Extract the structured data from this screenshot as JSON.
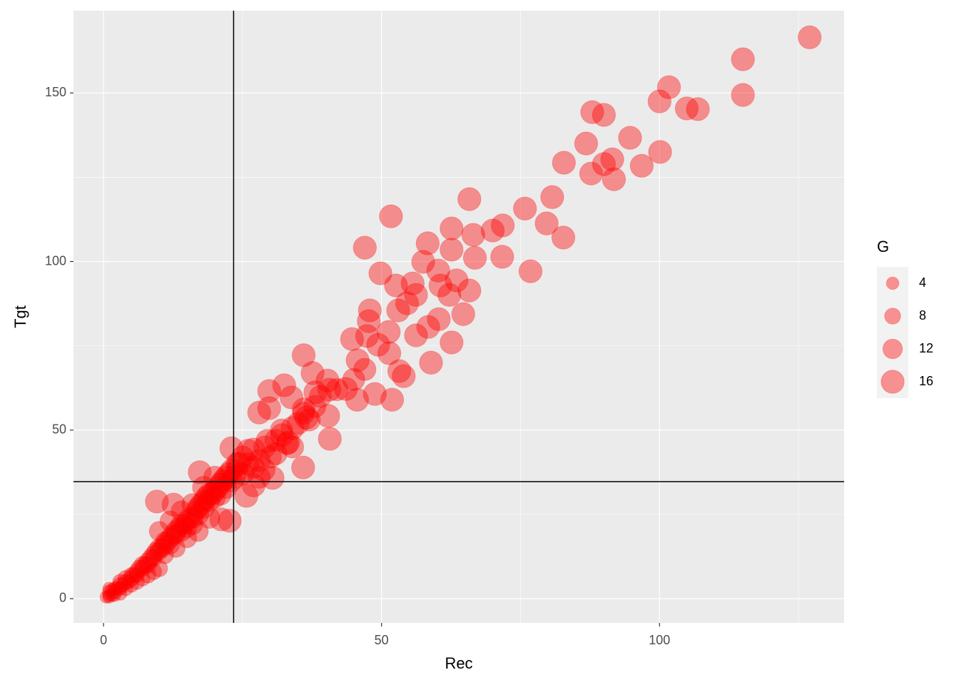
{
  "chart_data": {
    "type": "scatter",
    "x_label": "Rec",
    "y_label": "Tgt",
    "legend_title": "G",
    "xlim": [
      -5.4,
      133.2
    ],
    "ylim": [
      -7.2,
      174.4
    ],
    "xticks": [
      0,
      50,
      100
    ],
    "yticks": [
      0,
      50,
      100,
      150
    ],
    "xminor": [
      25,
      75,
      125
    ],
    "yminor": [
      25,
      75,
      125
    ],
    "grid": true,
    "alpha": 0.4,
    "vlines": [
      23.4
    ],
    "hlines": [
      34.7
    ],
    "size_legend": [
      4,
      8,
      12,
      16
    ],
    "series": [
      {
        "color": "#ff0000",
        "x": [
          127,
          115,
          115,
          101.7,
          100,
          104.9,
          106.9,
          100.1,
          94.7,
          96.8,
          91.5,
          91.8,
          90,
          87.7,
          87.9,
          90,
          86.8,
          82.8,
          80.7,
          79.7,
          82.7,
          75.8,
          71.8,
          70,
          71.7,
          76.8,
          65.8,
          66.5,
          66.8,
          62.6,
          62.6,
          58.3,
          57.5,
          60.2,
          60.6,
          65.8,
          63.5,
          62.2,
          64.7,
          62.6,
          60.3,
          58.4,
          58.9,
          55.6,
          56.2,
          54.6,
          56.2,
          53,
          51.7,
          47,
          49.8,
          52.6,
          47.9,
          47.7,
          44.7,
          47.4,
          51.3,
          49.4,
          45.7,
          51.4,
          53.2,
          54,
          51.9,
          48.8,
          45.6,
          43.6,
          40.4,
          40.7,
          36,
          37.6,
          40.3,
          40.6,
          38.1,
          32.5,
          33.8,
          29.8,
          28,
          29.8,
          36,
          36.5,
          35.9,
          33.2,
          32.1,
          34,
          29.5,
          27,
          23,
          24.4,
          28.8,
          27,
          30.4,
          25.7,
          17.3,
          9.6,
          12.6,
          21.2,
          22.7,
          1,
          1,
          1.5,
          2,
          2,
          2.5,
          3,
          3,
          3.5,
          4,
          4,
          4.5,
          5,
          5,
          5.5,
          6,
          6,
          6.5,
          7,
          7,
          7.5,
          8,
          8,
          8.5,
          9,
          9,
          9.5,
          10,
          10,
          10.5,
          11,
          11,
          11.5,
          12,
          12,
          12.5,
          13,
          13,
          13.5,
          14,
          14,
          14.5,
          15,
          15,
          15.5,
          16,
          16,
          16.5,
          17,
          17,
          17.5,
          18,
          18,
          18.5,
          19,
          19,
          19.5,
          20,
          20,
          20.5,
          21,
          21,
          21.5,
          22,
          22,
          22.5,
          23,
          23,
          23.5,
          24,
          24,
          25,
          25,
          26,
          26,
          27,
          28,
          28,
          29,
          30,
          31,
          31,
          32,
          33,
          34,
          35,
          36,
          37,
          38,
          39,
          42,
          45,
          47,
          3,
          5,
          7,
          9,
          11,
          13,
          15,
          17,
          19,
          12,
          14,
          16,
          18,
          20,
          10,
          1,
          2,
          0.5,
          1,
          1.5,
          3,
          4,
          6,
          8,
          10
        ],
        "y": [
          166.5,
          160,
          149.4,
          151.7,
          147.5,
          145.4,
          145.2,
          132.5,
          136.7,
          128.4,
          130.3,
          124.4,
          128.9,
          126.1,
          144.3,
          143.5,
          135,
          129.3,
          119.1,
          111.3,
          107.1,
          115.7,
          110.7,
          109.2,
          101.4,
          97.1,
          118.5,
          107.9,
          101.1,
          109.8,
          103.5,
          105.4,
          99.9,
          97.3,
          92.9,
          91.4,
          94.4,
          90.1,
          84.4,
          76,
          82.9,
          80.6,
          70,
          93.5,
          90.1,
          87.6,
          78.1,
          85.5,
          113.4,
          104.1,
          96.5,
          92.9,
          85.5,
          82.3,
          77,
          77.9,
          79.1,
          75.3,
          70.7,
          72.8,
          67.5,
          66,
          59,
          60.7,
          59,
          62.2,
          54.2,
          47.4,
          72.2,
          66.9,
          64.7,
          62,
          61.2,
          63.3,
          59.7,
          61.6,
          55.2,
          56.5,
          56.1,
          53.7,
          38.9,
          46.3,
          48.5,
          50.6,
          46.8,
          44.2,
          44.6,
          40,
          38.3,
          33.6,
          35.8,
          30.5,
          37.5,
          28.8,
          27.9,
          23.5,
          23.1,
          1,
          2,
          1,
          2,
          3,
          3,
          3,
          4,
          4,
          5,
          6,
          5,
          6,
          7,
          7,
          8,
          7,
          9,
          9,
          10,
          10,
          11,
          10,
          12,
          12,
          13,
          14,
          14,
          15,
          15,
          16,
          17,
          17,
          18,
          16,
          19,
          19,
          20,
          21,
          20,
          22,
          22,
          23,
          21,
          24,
          24,
          22,
          26,
          25,
          27,
          28,
          27,
          29,
          30,
          29,
          31,
          31,
          32,
          30,
          33,
          34,
          31,
          35,
          36,
          33,
          37,
          38,
          35,
          36,
          38,
          40,
          37,
          42,
          40,
          44,
          39,
          41,
          36,
          45,
          42,
          47,
          43,
          50,
          46,
          45,
          52,
          55,
          53,
          57,
          60,
          62,
          65,
          68,
          5,
          4,
          6,
          8,
          13,
          15,
          18,
          20,
          24,
          23,
          26,
          28,
          33,
          36,
          20,
          3,
          1,
          0.5,
          0.5,
          2.5,
          1.5,
          3,
          5,
          7,
          9
        ],
        "size": [
          16,
          16,
          16,
          16,
          16,
          16,
          16,
          16,
          16,
          16,
          16,
          16,
          16,
          16,
          16,
          16,
          16,
          16,
          16,
          16,
          16,
          16,
          16,
          16,
          16,
          16,
          16,
          16,
          16,
          16,
          16,
          16,
          16,
          16,
          16,
          16,
          16,
          16,
          16,
          16,
          16,
          16,
          16,
          16,
          16,
          16,
          16,
          16,
          16,
          16,
          16,
          16,
          16,
          16,
          16,
          16,
          16,
          16,
          16,
          16,
          16,
          16,
          16,
          16,
          16,
          16,
          16,
          16,
          16,
          16,
          16,
          16,
          16,
          16,
          16,
          16,
          16,
          16,
          16,
          16,
          16,
          16,
          16,
          16,
          16,
          16,
          16,
          16,
          16,
          16,
          16,
          16,
          16,
          16,
          16,
          16,
          16,
          4,
          5,
          4,
          6,
          5,
          6,
          5,
          7,
          6,
          7,
          8,
          6,
          8,
          7,
          8,
          8,
          7,
          9,
          8,
          9,
          9,
          10,
          9,
          10,
          9,
          10,
          11,
          10,
          11,
          11,
          12,
          11,
          12,
          12,
          11,
          12,
          12,
          13,
          12,
          13,
          13,
          12,
          13,
          12,
          13,
          14,
          13,
          13,
          14,
          14,
          14,
          14,
          14,
          15,
          14,
          15,
          15,
          15,
          14,
          15,
          15,
          15,
          15,
          15,
          15,
          15,
          15,
          15,
          15,
          15,
          15,
          15,
          15,
          15,
          15,
          15,
          15,
          15,
          15,
          15,
          15,
          15,
          15,
          15,
          15,
          15,
          15,
          15,
          15,
          15,
          15,
          15,
          15,
          7,
          6,
          7,
          8,
          10,
          11,
          12,
          13,
          14,
          13,
          13,
          14,
          15,
          15,
          12,
          4,
          4,
          4,
          4,
          5,
          5,
          6,
          7,
          8,
          9
        ]
      }
    ]
  }
}
